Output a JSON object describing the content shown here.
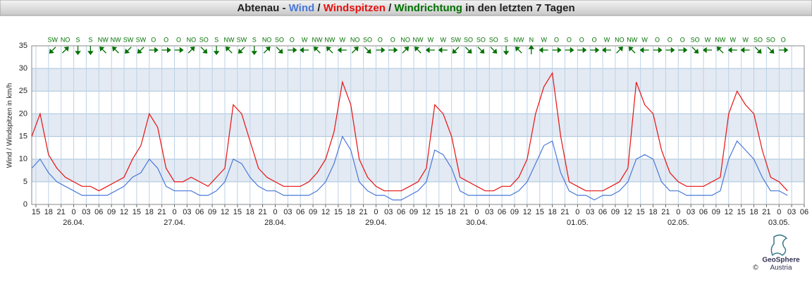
{
  "chart_data": {
    "type": "line",
    "title": {
      "prefix": "Abtenau -",
      "separator": "/",
      "direction_label": "Windrichtung",
      "suffix": "in den letzten 7 Tagen"
    },
    "direction_color": "#007000",
    "y_label": "Wind / Windspitzen in km/h",
    "ylim": [
      0,
      35
    ],
    "yticks": [
      0,
      5,
      10,
      15,
      20,
      25,
      30,
      35
    ],
    "grid": true,
    "bands": true,
    "xlim": [
      -10,
      174
    ],
    "xticks": [
      {
        "value": -9,
        "label": "15"
      },
      {
        "value": -6,
        "label": "18"
      },
      {
        "value": -3,
        "label": "21"
      },
      {
        "value": 0,
        "label": "0"
      },
      {
        "value": 3,
        "label": "03"
      },
      {
        "value": 6,
        "label": "06"
      },
      {
        "value": 9,
        "label": "09"
      },
      {
        "value": 12,
        "label": "12"
      },
      {
        "value": 15,
        "label": "15"
      },
      {
        "value": 18,
        "label": "18"
      },
      {
        "value": 21,
        "label": "21"
      },
      {
        "value": 24,
        "label": "0"
      },
      {
        "value": 27,
        "label": "03"
      },
      {
        "value": 30,
        "label": "06"
      },
      {
        "value": 33,
        "label": "09"
      },
      {
        "value": 36,
        "label": "12"
      },
      {
        "value": 39,
        "label": "15"
      },
      {
        "value": 42,
        "label": "18"
      },
      {
        "value": 45,
        "label": "21"
      },
      {
        "value": 48,
        "label": "0"
      },
      {
        "value": 51,
        "label": "03"
      },
      {
        "value": 54,
        "label": "06"
      },
      {
        "value": 57,
        "label": "09"
      },
      {
        "value": 60,
        "label": "12"
      },
      {
        "value": 63,
        "label": "15"
      },
      {
        "value": 66,
        "label": "18"
      },
      {
        "value": 69,
        "label": "21"
      },
      {
        "value": 72,
        "label": "0"
      },
      {
        "value": 75,
        "label": "03"
      },
      {
        "value": 78,
        "label": "06"
      },
      {
        "value": 81,
        "label": "09"
      },
      {
        "value": 84,
        "label": "12"
      },
      {
        "value": 87,
        "label": "15"
      },
      {
        "value": 90,
        "label": "18"
      },
      {
        "value": 93,
        "label": "21"
      },
      {
        "value": 96,
        "label": "0"
      },
      {
        "value": 99,
        "label": "03"
      },
      {
        "value": 102,
        "label": "06"
      },
      {
        "value": 105,
        "label": "09"
      },
      {
        "value": 108,
        "label": "12"
      },
      {
        "value": 111,
        "label": "15"
      },
      {
        "value": 114,
        "label": "18"
      },
      {
        "value": 117,
        "label": "21"
      },
      {
        "value": 120,
        "label": "0"
      },
      {
        "value": 123,
        "label": "03"
      },
      {
        "value": 126,
        "label": "06"
      },
      {
        "value": 129,
        "label": "09"
      },
      {
        "value": 132,
        "label": "12"
      },
      {
        "value": 135,
        "label": "15"
      },
      {
        "value": 138,
        "label": "18"
      },
      {
        "value": 141,
        "label": "21"
      },
      {
        "value": 144,
        "label": "0"
      },
      {
        "value": 147,
        "label": "03"
      },
      {
        "value": 150,
        "label": "06"
      },
      {
        "value": 153,
        "label": "09"
      },
      {
        "value": 156,
        "label": "12"
      },
      {
        "value": 159,
        "label": "15"
      },
      {
        "value": 162,
        "label": "18"
      },
      {
        "value": 165,
        "label": "21"
      },
      {
        "value": 168,
        "label": "0"
      },
      {
        "value": 171,
        "label": "03"
      },
      {
        "value": 174,
        "label": "06"
      }
    ],
    "date_ticks": [
      {
        "value": 0,
        "label": "26.04."
      },
      {
        "value": 24,
        "label": "27.04."
      },
      {
        "value": 48,
        "label": "28.04."
      },
      {
        "value": 72,
        "label": "29.04."
      },
      {
        "value": 96,
        "label": "30.04."
      },
      {
        "value": 120,
        "label": "01.05."
      },
      {
        "value": 144,
        "label": "02.05."
      },
      {
        "value": 168,
        "label": "03.05."
      }
    ],
    "x": [
      -10,
      -8,
      -6,
      -4,
      -2,
      0,
      2,
      4,
      6,
      8,
      10,
      12,
      14,
      16,
      18,
      20,
      22,
      24,
      26,
      28,
      30,
      32,
      34,
      36,
      38,
      40,
      42,
      44,
      46,
      48,
      50,
      52,
      54,
      56,
      58,
      60,
      62,
      64,
      66,
      68,
      70,
      72,
      74,
      76,
      78,
      80,
      82,
      84,
      86,
      88,
      90,
      92,
      94,
      96,
      98,
      100,
      102,
      104,
      106,
      108,
      110,
      112,
      114,
      116,
      118,
      120,
      122,
      124,
      126,
      128,
      130,
      132,
      134,
      136,
      138,
      140,
      142,
      144,
      146,
      148,
      150,
      152,
      154,
      156,
      158,
      160,
      162,
      164,
      166,
      168,
      170
    ],
    "series": [
      {
        "name": "Wind",
        "color": "#4a78d8",
        "values": [
          8,
          10,
          7,
          5,
          4,
          3,
          2,
          2,
          2,
          2,
          3,
          4,
          6,
          7,
          10,
          8,
          4,
          3,
          3,
          3,
          2,
          2,
          3,
          5,
          10,
          9,
          6,
          4,
          3,
          3,
          2,
          2,
          2,
          2,
          3,
          5,
          9,
          15,
          12,
          5,
          3,
          2,
          2,
          1,
          1,
          2,
          3,
          5,
          12,
          11,
          8,
          3,
          2,
          2,
          2,
          2,
          2,
          2,
          3,
          5,
          9,
          13,
          14,
          7,
          3,
          2,
          2,
          1,
          2,
          2,
          3,
          5,
          10,
          11,
          10,
          5,
          3,
          3,
          2,
          2,
          2,
          2,
          3,
          10,
          14,
          12,
          10,
          6,
          3,
          3,
          2
        ]
      },
      {
        "name": "Windspitzen",
        "color": "#e81010",
        "values": [
          15,
          20,
          11,
          8,
          6,
          5,
          4,
          4,
          3,
          4,
          5,
          6,
          10,
          13,
          20,
          17,
          8,
          5,
          5,
          6,
          5,
          4,
          6,
          8,
          22,
          20,
          14,
          8,
          6,
          5,
          4,
          4,
          4,
          5,
          7,
          10,
          16,
          27,
          22,
          10,
          6,
          4,
          3,
          3,
          3,
          4,
          5,
          8,
          22,
          20,
          15,
          6,
          5,
          4,
          3,
          3,
          4,
          4,
          6,
          10,
          20,
          26,
          29,
          15,
          5,
          4,
          3,
          3,
          3,
          4,
          5,
          8,
          27,
          22,
          20,
          12,
          7,
          5,
          4,
          4,
          4,
          5,
          6,
          20,
          25,
          22,
          20,
          12,
          6,
          5,
          3
        ]
      }
    ],
    "directions": {
      "x": [
        -5,
        -2,
        1,
        4,
        7,
        10,
        13,
        16,
        19,
        22,
        25,
        28,
        31,
        34,
        37,
        40,
        43,
        46,
        49,
        52,
        55,
        58,
        61,
        64,
        67,
        70,
        73,
        76,
        79,
        82,
        85,
        88,
        91,
        94,
        97,
        100,
        103,
        106,
        109,
        112,
        115,
        118,
        121,
        124,
        127,
        130,
        133,
        136,
        139,
        142,
        145,
        148,
        151,
        154,
        157,
        160,
        163,
        166,
        169
      ],
      "labels": [
        "SW",
        "NO",
        "S",
        "S",
        "NW",
        "NW",
        "SW",
        "SW",
        "O",
        "O",
        "O",
        "NO",
        "SO",
        "S",
        "NW",
        "SW",
        "S",
        "NO",
        "SO",
        "O",
        "W",
        "NW",
        "NW",
        "W",
        "NO",
        "SO",
        "O",
        "O",
        "NO",
        "NW",
        "W",
        "W",
        "SW",
        "SO",
        "SO",
        "SO",
        "S",
        "NW",
        "N",
        "W",
        "O",
        "O",
        "O",
        "O",
        "W",
        "NO",
        "NW",
        "W",
        "O",
        "O",
        "O",
        "SO",
        "W",
        "NW",
        "W",
        "W",
        "SO",
        "SO",
        "O"
      ]
    },
    "footer": {
      "copyright": "©",
      "logo_line1": "GeoSphere",
      "logo_line2": "Austria"
    }
  }
}
